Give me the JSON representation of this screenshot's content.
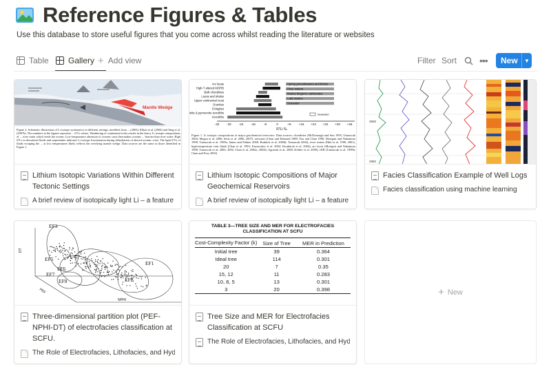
{
  "page": {
    "title": "Reference Figures & Tables",
    "description": "Use this database to store useful figures that you come across whilst reading the literature or websites"
  },
  "views": {
    "tabs": [
      {
        "label": "Table",
        "active": false
      },
      {
        "label": "Gallery",
        "active": true
      }
    ],
    "add_view": "Add view"
  },
  "toolbar": {
    "filter": "Filter",
    "sort": "Sort",
    "new": "New",
    "accent": "#2383e2"
  },
  "cards": [
    {
      "title": "Lithium Isotopic Variations Within Different Tectonic Settings",
      "property": "A brief review of isotopically light Li – a feature of",
      "cover_text": {
        "label": "Mantle Wedge",
        "caption": "Figure 2. Schematic illustration of Li isotope systematics in different settings, modified from ... (2003), Elliott et al. (2004) and Tang et al. (2007b). The numbers in the figures represent ... δ7Li values. Weathering of continental rocks results in the heavy Li isotope compositions of ... river water which feeds the oceans. Low-temperature alteration of oceanic crust then makes oceanic ... heavier than river water. High δ7Li in dewatered fluids and serpentinite indicates Li isotope fractionation during dehydration of altered oceanic crust. The light δ7Li of fluids escaping the ... at low temperatures likely reflects the overlying mantle wedge. Data sources are the same as those identified in Figure 1."
      }
    },
    {
      "title": "Lithium Isotopic Compositions of Major Geochemical Reservoirs",
      "property": "A brief review of isotopically light Li – a feature of",
      "cover_text": {
        "rows": [
          "Arc lavas",
          "High-T altered MORB",
          "Bulk chondrites",
          "Loess and shales",
          "Upper continental crust",
          "Granites",
          "Eclogites",
          "Peridotite & pyroxenite xenoliths",
          "Xenoliths"
        ],
        "right_labels": [
          "Spring groundwaters and brines",
          "River waters",
          "Marine biogenic carbonates",
          "Lake waters",
          "Seawater"
        ],
        "axis_ticks": [
          "-40",
          "-32",
          "-24",
          "-16",
          "-8",
          "0",
          "+8",
          "+16",
          "+24",
          "+32",
          "+40",
          "+48"
        ],
        "axis_label": "δ7Li ‰",
        "legend": "Seawater",
        "caption": "Figure 1. Li isotopic compositions of major geochemical reservoirs. Data sources: chondrites (McDonough and Sun 1995; Tomascak 2004; Magna et al. 2006; Seitz et al. 2006, 2007), seawater (Chan and Edmond 1988; You and Chan 1996; Moriguti and Nakamura 1998; Tomascak et al. 1999a; James and Palmer 2000; Rudnick et al. 2004b; Tomascak 2004), river waters (Huh et al. 1998, 2001), high-temperature vent fluids (Chan et al. 1993; Foustoukos et al. 2004; Kisakürek et al. 2004), arc lavas (Moriguti and Nakamura 1998; Tomascak et al. 2000, 2002; Chan et al. 2002a, 2002b; Agostini et al. 2008; Köhler et al. 2009), OIB (Tomascak et al. 1999b; Chan and Frey 2003)"
      }
    },
    {
      "title": "Facies Classification Example of Well Logs",
      "property": "Facies classification using machine learning",
      "cover_text": {
        "depths": [
          "2900",
          "2950"
        ]
      }
    },
    {
      "title": "Three-dimensional partition plot (PEF-NPHI-DT) of electrofacies classification at SCFU.",
      "property": "The Role of Electrofacies, Lithofacies, and Hydraulic",
      "cover_text": {
        "cluster_labels": [
          "EF3",
          "EF5",
          "EF6",
          "EF7",
          "EF8",
          "EF1",
          "EF2"
        ],
        "axis_labels": [
          "DT",
          "PEF",
          "NPHI"
        ]
      }
    },
    {
      "title": "Tree Size and MER for Electrofacies Classification at SCFU",
      "property": "The Role of Electrofacies, Lithofacies, and Hydraulic",
      "cover_table": {
        "caption": "TABLE 3—TREE SIZE AND MER FOR ELECTROFACIES CLASSIFICATION AT SCFU",
        "headers": [
          "Cost-Complexity Factor (k)",
          "Size of Tree",
          "MER in Prediction"
        ],
        "rows": [
          [
            "Initial tree",
            "39",
            "0.364"
          ],
          [
            "Ideal tree",
            "114",
            "0.301"
          ],
          [
            "20",
            "7",
            "0.35"
          ],
          [
            "15, 12",
            "11",
            "0.283"
          ],
          [
            "10, 8, 5",
            "13",
            "0.301"
          ],
          [
            "3",
            "20",
            "0.398"
          ]
        ]
      }
    }
  ],
  "new_card_label": "New"
}
